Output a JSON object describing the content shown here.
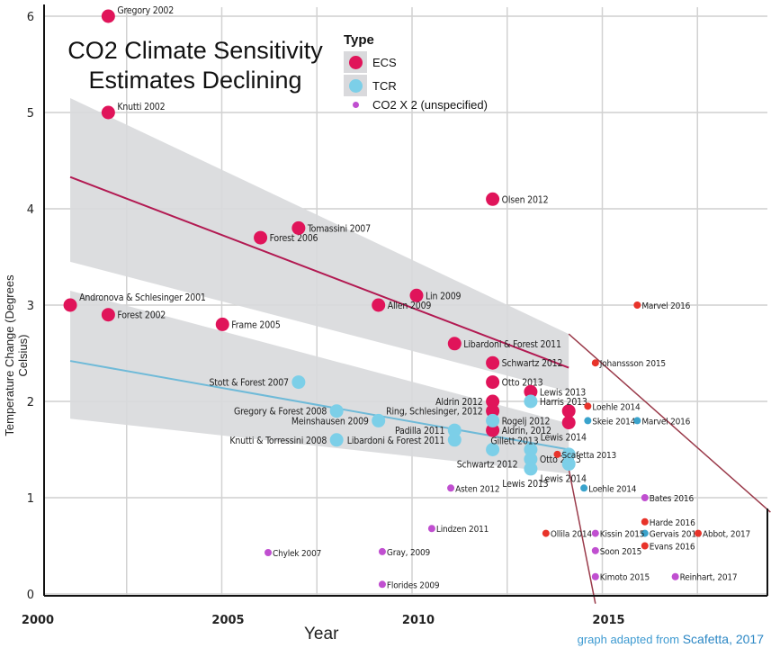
{
  "chart_data": {
    "type": "scatter",
    "title": "CO2 Climate Sensitivity Estimates Declining",
    "xlabel": "Year",
    "ylabel": "Temperature Change (Degrees Celsius)",
    "xlim": [
      2000,
      2020
    ],
    "ylim": [
      0,
      6
    ],
    "xticks": [
      "2000",
      "2005",
      "2010",
      "2015"
    ],
    "xtick_values": [
      2000,
      2005,
      2010,
      2015
    ],
    "yticks": [
      "0",
      "1",
      "2",
      "3",
      "4",
      "5",
      "6"
    ],
    "grid": true,
    "legend": {
      "title": "Type",
      "placement": "top-center",
      "entries": [
        "ECS",
        "TCR",
        "CO2 X 2 (unspecified)"
      ]
    },
    "colors": {
      "ECS": "#e0145a",
      "TCR": "#7ccfe8",
      "unspecified": "#c04fd0",
      "red": "#e8332a",
      "blue": "#3aa3cc",
      "band": "#d8d9dc",
      "ecs_trend": "#b21a52",
      "tcr_trend": "#6fbad8",
      "bound_line": "#9a3a4a"
    },
    "series": [
      {
        "name": "ECS",
        "points": [
          {
            "label": "Gregory 2002",
            "x": 2001.9,
            "y": 6.0,
            "side": "right"
          },
          {
            "label": "Knutti 2002",
            "x": 2001.9,
            "y": 5.0,
            "side": "right"
          },
          {
            "label": "Andronova & Schlesinger 2001",
            "x": 2000.9,
            "y": 3.0,
            "side": "right"
          },
          {
            "label": "Forest 2002",
            "x": 2001.9,
            "y": 2.9,
            "side": "right"
          },
          {
            "label": "Frame 2005",
            "x": 2004.9,
            "y": 2.8,
            "side": "right"
          },
          {
            "label": "Forest 2006",
            "x": 2005.9,
            "y": 3.7,
            "side": "right"
          },
          {
            "label": "Tomassini 2007",
            "x": 2006.9,
            "y": 3.8,
            "side": "right"
          },
          {
            "label": "Allen 2009",
            "x": 2009.0,
            "y": 3.0,
            "side": "right"
          },
          {
            "label": "Lin 2009",
            "x": 2010.0,
            "y": 3.1,
            "side": "right"
          },
          {
            "label": "Libardoni & Forest 2011",
            "x": 2011.0,
            "y": 2.6,
            "side": "right"
          },
          {
            "label": "Olsen 2012",
            "x": 2012.0,
            "y": 4.1,
            "side": "right"
          },
          {
            "label": "Schwartz 2012",
            "x": 2012.0,
            "y": 2.4,
            "side": "right"
          },
          {
            "label": "Otto 2013",
            "x": 2012.0,
            "y": 2.2,
            "side": "right"
          },
          {
            "label": "Aldrin 2012",
            "x": 2012.0,
            "y": 2.0,
            "side": "left"
          },
          {
            "label": "Ring, Schlesinger, 2012",
            "x": 2012.0,
            "y": 1.9,
            "side": "left"
          },
          {
            "label": "Aldrin, 2012",
            "x": 2012.0,
            "y": 1.7,
            "side": "right"
          },
          {
            "label": "Lewis 2013",
            "x": 2013.0,
            "y": 2.1,
            "side": "right"
          },
          {
            "label": "",
            "x": 2014.0,
            "y": 1.9,
            "side": "right"
          },
          {
            "label": "Lewis 2014",
            "x": 2014.0,
            "y": 1.78,
            "side": "below"
          }
        ]
      },
      {
        "name": "TCR",
        "points": [
          {
            "label": "Stott & Forest 2007",
            "x": 2006.9,
            "y": 2.2,
            "side": "left"
          },
          {
            "label": "Gregory & Forest 2008",
            "x": 2007.9,
            "y": 1.9,
            "side": "left"
          },
          {
            "label": "Meinshausen 2009",
            "x": 2009.0,
            "y": 1.8,
            "side": "left"
          },
          {
            "label": "Knutti & Torressini 2008",
            "x": 2007.9,
            "y": 1.6,
            "side": "left"
          },
          {
            "label": "Padilla 2011",
            "x": 2011.0,
            "y": 1.7,
            "side": "left"
          },
          {
            "label": "Libardoni & Forest 2011",
            "x": 2011.0,
            "y": 1.6,
            "side": "left"
          },
          {
            "label": "Rogelj 2012",
            "x": 2012.0,
            "y": 1.8,
            "side": "right"
          },
          {
            "label": "Schwartz 2012",
            "x": 2012.0,
            "y": 1.5,
            "side": "below"
          },
          {
            "label": "Harris 2013",
            "x": 2013.0,
            "y": 2.0,
            "side": "right"
          },
          {
            "label": "Gillett 2013",
            "x": 2013.0,
            "y": 1.5,
            "side": "above"
          },
          {
            "label": "Otto 2013",
            "x": 2013.0,
            "y": 1.4,
            "side": "right"
          },
          {
            "label": "Lewis 2013",
            "x": 2013.0,
            "y": 1.3,
            "side": "below"
          },
          {
            "label": "",
            "x": 2014.0,
            "y": 1.45,
            "side": "right"
          },
          {
            "label": "Lewis 2014",
            "x": 2014.0,
            "y": 1.35,
            "side": "below"
          }
        ]
      },
      {
        "name": "CO2 X 2 (unspecified)",
        "points": [
          {
            "label": "Marvel 2016",
            "x": 2015.8,
            "y": 3.0,
            "color": "red"
          },
          {
            "label": "Johanssson 2015",
            "x": 2014.7,
            "y": 2.4,
            "color": "red"
          },
          {
            "label": "Loehle 2014",
            "x": 2014.5,
            "y": 1.95,
            "color": "red"
          },
          {
            "label": "Skeie 2014",
            "x": 2014.5,
            "y": 1.8,
            "color": "blue"
          },
          {
            "label": "Marvel 2016",
            "x": 2015.8,
            "y": 1.8,
            "color": "blue"
          },
          {
            "label": "Scafetta 2013",
            "x": 2013.7,
            "y": 1.45,
            "color": "red"
          },
          {
            "label": "Loehle 2014",
            "x": 2014.4,
            "y": 1.1,
            "color": "blue"
          },
          {
            "label": "Asten 2012",
            "x": 2010.9,
            "y": 1.1,
            "color": "unspecified"
          },
          {
            "label": "Bates 2016",
            "x": 2016.0,
            "y": 1.0,
            "color": "unspecified"
          },
          {
            "label": "Harde 2016",
            "x": 2016.0,
            "y": 0.75,
            "color": "red"
          },
          {
            "label": "Gervais 2016",
            "x": 2016.0,
            "y": 0.63,
            "color": "blue"
          },
          {
            "label": "Abbot, 2017",
            "x": 2017.4,
            "y": 0.63,
            "color": "red"
          },
          {
            "label": "Evans 2016",
            "x": 2016.0,
            "y": 0.5,
            "color": "red"
          },
          {
            "label": "Ollila 2014",
            "x": 2013.4,
            "y": 0.63,
            "color": "red"
          },
          {
            "label": "Kissin 2015",
            "x": 2014.7,
            "y": 0.63,
            "color": "unspecified"
          },
          {
            "label": "Soon 2015",
            "x": 2014.7,
            "y": 0.45,
            "color": "unspecified"
          },
          {
            "label": "Kimoto 2015",
            "x": 2014.7,
            "y": 0.18,
            "color": "unspecified"
          },
          {
            "label": "Reinhart, 2017",
            "x": 2016.8,
            "y": 0.18,
            "color": "unspecified"
          },
          {
            "label": "Lindzen 2011",
            "x": 2010.4,
            "y": 0.68,
            "color": "unspecified"
          },
          {
            "label": "Chylek 2007",
            "x": 2006.1,
            "y": 0.43,
            "color": "unspecified"
          },
          {
            "label": "Gray, 2009",
            "x": 2009.1,
            "y": 0.44,
            "color": "unspecified"
          },
          {
            "label": "Florides 2009",
            "x": 2009.1,
            "y": 0.1,
            "color": "unspecified"
          }
        ]
      }
    ],
    "trends": [
      {
        "name": "ECS",
        "x": [
          2000.9,
          2014.0
        ],
        "y": [
          4.33,
          2.35
        ],
        "band_upper": [
          5.15,
          2.7
        ],
        "band_lower": [
          3.45,
          2.1
        ]
      },
      {
        "name": "TCR",
        "x": [
          2000.9,
          2014.0
        ],
        "y": [
          2.42,
          1.5
        ],
        "band_upper": [
          3.15,
          1.77
        ],
        "band_lower": [
          1.82,
          1.25
        ]
      }
    ],
    "bound_lines": [
      {
        "x": [
          2014.0,
          2019.3
        ],
        "y": [
          2.7,
          0.85
        ]
      },
      {
        "x": [
          2014.0,
          2014.7
        ],
        "y": [
          1.3,
          -0.1
        ]
      }
    ]
  },
  "credit": {
    "prefix": "graph adapted from ",
    "source": "Scafetta, 2017"
  }
}
